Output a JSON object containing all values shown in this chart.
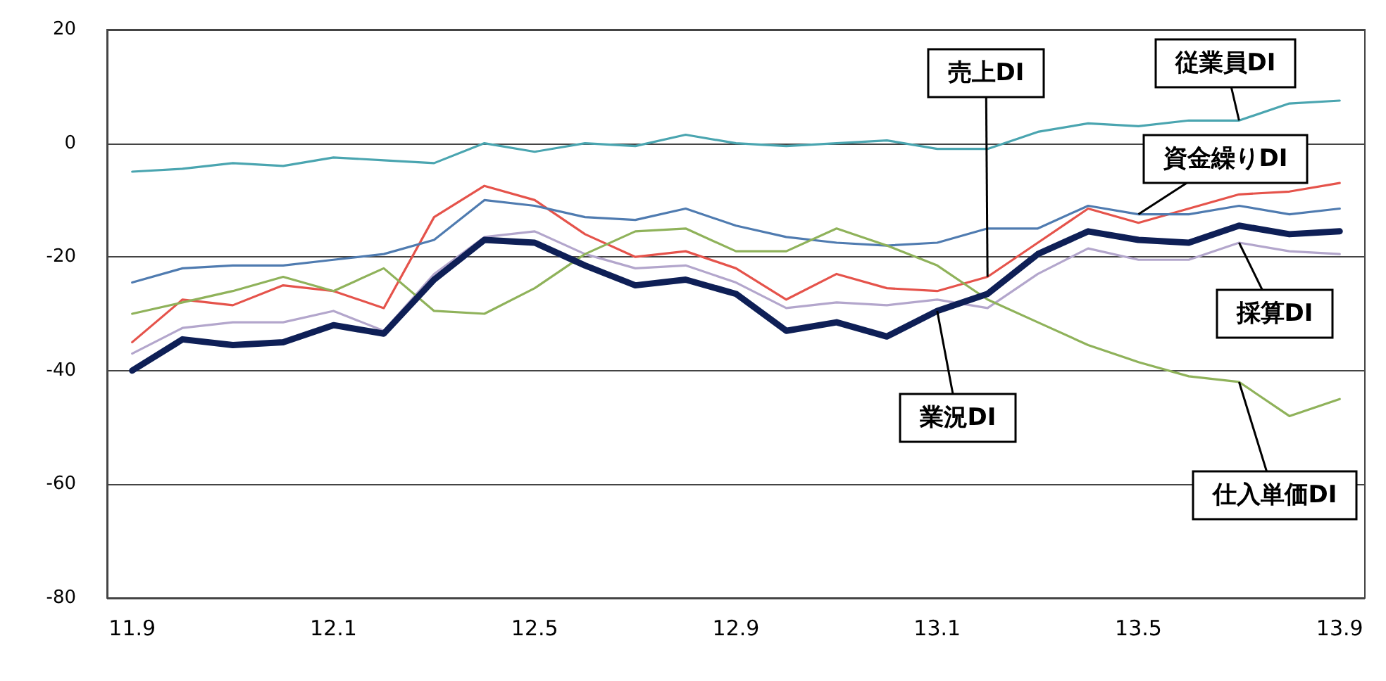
{
  "chart_data": {
    "type": "line",
    "categories": [
      "11.9",
      null,
      null,
      null,
      "12.1",
      null,
      null,
      null,
      "12.5",
      null,
      null,
      null,
      "12.9",
      null,
      null,
      null,
      "13.1",
      null,
      null,
      null,
      "13.5",
      null,
      null,
      null,
      "13.9"
    ],
    "series": [
      {
        "name": "従業員DI",
        "color": "#4aa5b0",
        "values": [
          -5,
          -4.5,
          -3.5,
          -4,
          -2.5,
          -3,
          -3.5,
          0,
          -1.5,
          0,
          -0.5,
          1.5,
          0,
          -0.5,
          0,
          0.5,
          -1,
          -1,
          2,
          3.5,
          3,
          4,
          4,
          7,
          7.5
        ]
      },
      {
        "name": "売上DI",
        "color": "#e5534b",
        "values": [
          -35,
          -27.5,
          -28.5,
          -25,
          -26,
          -29,
          -13,
          -7.5,
          -10,
          -16,
          -20,
          -19,
          -22,
          -27.5,
          -23,
          -25.5,
          -26,
          -23.5,
          -17.5,
          -11.5,
          -14,
          -11.5,
          -9,
          -8.5,
          -7
        ]
      },
      {
        "name": "資金繰りDI",
        "color": "#4f7bb0",
        "values": [
          -24.5,
          -22,
          -21.5,
          -21.5,
          -20.5,
          -19.5,
          -17,
          -10,
          -11,
          -13,
          -13.5,
          -11.5,
          -14.5,
          -16.5,
          -17.5,
          -18,
          -17.5,
          -15,
          -15,
          -11,
          -12.5,
          -12.5,
          -11,
          -12.5,
          -11.5
        ]
      },
      {
        "name": "採算DI",
        "color": "#b3a6cc",
        "values": [
          -37,
          -32.5,
          -31.5,
          -31.5,
          -29.5,
          -33,
          -23,
          -16.5,
          -15.5,
          -19.5,
          -22,
          -21.5,
          -24.5,
          -29,
          -28,
          -28.5,
          -27.5,
          -29,
          -23,
          -18.5,
          -20.5,
          -20.5,
          -17.5,
          -19,
          -19.5
        ]
      },
      {
        "name": "仕入単価DI",
        "color": "#8fb25a",
        "values": [
          -30,
          -28,
          -26,
          -23.5,
          -26,
          -22,
          -29.5,
          -30,
          -25.5,
          -19.5,
          -15.5,
          -15,
          -19,
          -19,
          -15,
          -18,
          -21.5,
          -27.5,
          -31.5,
          -35.5,
          -38.5,
          -41,
          -42,
          -48,
          -45
        ]
      },
      {
        "name": "業況DI",
        "color": "#0e1f56",
        "values": [
          -40,
          -34.5,
          -35.5,
          -35,
          -32,
          -33.5,
          -24,
          -17,
          -17.5,
          -21.5,
          -25,
          -24,
          -26.5,
          -33,
          -31.5,
          -34,
          -29.5,
          -26.5,
          -19.5,
          -15.5,
          -17,
          -17.5,
          -14.5,
          -16,
          -15.5
        ]
      }
    ],
    "ylim": [
      -80,
      20
    ],
    "yticks": [
      -80,
      -60,
      -40,
      -20,
      0,
      20
    ],
    "grid": "y",
    "legend": false,
    "marker": "none",
    "line_style": "solid"
  }
}
